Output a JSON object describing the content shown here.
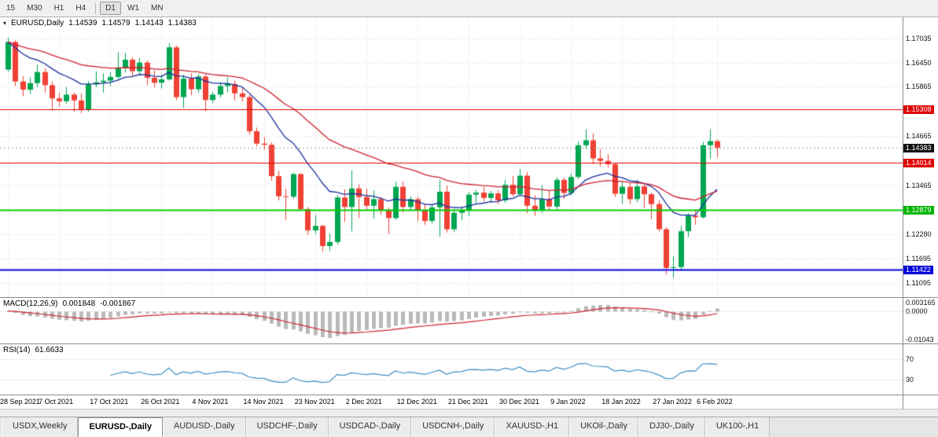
{
  "toolbar": {
    "active": "D1",
    "groups": [
      [
        "15",
        "M30",
        "H1",
        "H4"
      ],
      [
        "D1",
        "W1",
        "MN"
      ]
    ]
  },
  "chart": {
    "symbol_period": "EURUSD,Daily",
    "ohlc": {
      "open": "1.14539",
      "high": "1.14579",
      "low": "1.14143",
      "close": "1.14383"
    }
  },
  "chart_data": {
    "type": "candlestick",
    "title": "EURUSD,Daily",
    "ylim": [
      1.1075,
      1.1755
    ],
    "up_color": "#00a651",
    "down_color": "#ef4135",
    "grid_color": "#dcdcdc",
    "current_price": 1.14383,
    "price_ticks": [
      {
        "label": "1.17035",
        "v": 1.17035
      },
      {
        "label": "1.16450",
        "v": 1.1645
      },
      {
        "label": "1.15865",
        "v": 1.15865
      },
      {
        "label": "1.14665",
        "v": 1.14665
      },
      {
        "label": "1.13465",
        "v": 1.13465
      },
      {
        "label": "1.12280",
        "v": 1.1228
      },
      {
        "label": "1.11695",
        "v": 1.11695
      },
      {
        "label": "1.11095",
        "v": 1.11095
      }
    ],
    "price_badges": [
      {
        "label": "1.15308",
        "v": 1.15308,
        "bg": "#e00000"
      },
      {
        "label": "1.14383",
        "v": 1.14383,
        "bg": "#111111"
      },
      {
        "label": "1.14014",
        "v": 1.14014,
        "bg": "#e00000"
      },
      {
        "label": "1.12879",
        "v": 1.12879,
        "bg": "#00b400"
      },
      {
        "label": "1.11422",
        "v": 1.11422,
        "bg": "#0000dd"
      }
    ],
    "hlines": [
      {
        "value": 1.15308,
        "color": "#e00000",
        "width": 1
      },
      {
        "value": 1.14014,
        "color": "#e00000",
        "width": 1
      },
      {
        "value": 1.12879,
        "color": "#00cc00",
        "width": 2
      },
      {
        "value": 1.11422,
        "color": "#0000e0",
        "width": 2
      }
    ],
    "moving_averages": [
      {
        "period": 13,
        "color": "#1a2f9e"
      },
      {
        "period": 34,
        "color": "#cc2030"
      }
    ],
    "candles": [
      [
        1.1628,
        1.1705,
        1.1622,
        1.1695
      ],
      [
        1.1695,
        1.1699,
        1.1588,
        1.1599
      ],
      [
        1.1599,
        1.1612,
        1.1563,
        1.1579
      ],
      [
        1.1579,
        1.1608,
        1.1569,
        1.1595
      ],
      [
        1.1595,
        1.164,
        1.1585,
        1.1622
      ],
      [
        1.1622,
        1.163,
        1.1572,
        1.159
      ],
      [
        1.159,
        1.1599,
        1.1529,
        1.1558
      ],
      [
        1.1558,
        1.1571,
        1.1538,
        1.1551
      ],
      [
        1.1551,
        1.1586,
        1.1545,
        1.1567
      ],
      [
        1.1567,
        1.1572,
        1.1524,
        1.1553
      ],
      [
        1.1553,
        1.157,
        1.1522,
        1.153
      ],
      [
        1.153,
        1.16,
        1.1525,
        1.1592
      ],
      [
        1.1592,
        1.1624,
        1.1585,
        1.1597
      ],
      [
        1.1597,
        1.1619,
        1.1572,
        1.1601
      ],
      [
        1.1601,
        1.1622,
        1.1588,
        1.161
      ],
      [
        1.161,
        1.167,
        1.1605,
        1.1633
      ],
      [
        1.1633,
        1.1669,
        1.1621,
        1.1652
      ],
      [
        1.1652,
        1.1658,
        1.161,
        1.1624
      ],
      [
        1.1624,
        1.1656,
        1.1617,
        1.1645
      ],
      [
        1.1645,
        1.165,
        1.159,
        1.1608
      ],
      [
        1.1608,
        1.1626,
        1.1585,
        1.1596
      ],
      [
        1.1596,
        1.1615,
        1.1582,
        1.1604
      ],
      [
        1.1604,
        1.1692,
        1.1601,
        1.1682
      ],
      [
        1.1682,
        1.1686,
        1.1553,
        1.1561
      ],
      [
        1.1561,
        1.1616,
        1.1535,
        1.1606
      ],
      [
        1.1606,
        1.1619,
        1.1565,
        1.158
      ],
      [
        1.158,
        1.1617,
        1.1572,
        1.1611
      ],
      [
        1.1611,
        1.1616,
        1.1527,
        1.1554
      ],
      [
        1.1554,
        1.1573,
        1.1546,
        1.1567
      ],
      [
        1.1567,
        1.1598,
        1.156,
        1.1588
      ],
      [
        1.1588,
        1.1609,
        1.1572,
        1.1593
      ],
      [
        1.1593,
        1.1601,
        1.1552,
        1.157
      ],
      [
        1.157,
        1.1584,
        1.155,
        1.1561
      ],
      [
        1.1561,
        1.1566,
        1.147,
        1.1478
      ],
      [
        1.1478,
        1.1487,
        1.1441,
        1.1448
      ],
      [
        1.1448,
        1.1464,
        1.1433,
        1.1445
      ],
      [
        1.1445,
        1.1451,
        1.1358,
        1.1369
      ],
      [
        1.1369,
        1.1382,
        1.131,
        1.132
      ],
      [
        1.132,
        1.1338,
        1.1263,
        1.1319
      ],
      [
        1.1319,
        1.1377,
        1.1314,
        1.1374
      ],
      [
        1.1374,
        1.1376,
        1.1286,
        1.1289
      ],
      [
        1.1289,
        1.1294,
        1.1226,
        1.1237
      ],
      [
        1.1237,
        1.1275,
        1.1229,
        1.1248
      ],
      [
        1.1248,
        1.1251,
        1.1186,
        1.1199
      ],
      [
        1.1199,
        1.1229,
        1.1187,
        1.1209
      ],
      [
        1.1209,
        1.1323,
        1.1203,
        1.1317
      ],
      [
        1.1317,
        1.1337,
        1.1258,
        1.1294
      ],
      [
        1.1294,
        1.1383,
        1.1235,
        1.1339
      ],
      [
        1.1339,
        1.1349,
        1.1267,
        1.1318
      ],
      [
        1.1318,
        1.1339,
        1.1287,
        1.1297
      ],
      [
        1.1297,
        1.1334,
        1.1266,
        1.1313
      ],
      [
        1.1313,
        1.1319,
        1.1275,
        1.1285
      ],
      [
        1.1285,
        1.1292,
        1.1228,
        1.1267
      ],
      [
        1.1267,
        1.1355,
        1.1263,
        1.1343
      ],
      [
        1.1343,
        1.1356,
        1.128,
        1.1294
      ],
      [
        1.1294,
        1.132,
        1.1285,
        1.1313
      ],
      [
        1.1313,
        1.1319,
        1.126,
        1.1286
      ],
      [
        1.1286,
        1.1303,
        1.125,
        1.126
      ],
      [
        1.126,
        1.1298,
        1.1254,
        1.1293
      ],
      [
        1.1293,
        1.136,
        1.1222,
        1.1331
      ],
      [
        1.1331,
        1.1346,
        1.1232,
        1.124
      ],
      [
        1.124,
        1.1288,
        1.1234,
        1.128
      ],
      [
        1.128,
        1.1296,
        1.1262,
        1.1287
      ],
      [
        1.1287,
        1.133,
        1.1272,
        1.1324
      ],
      [
        1.1324,
        1.1336,
        1.1303,
        1.1329
      ],
      [
        1.1329,
        1.1343,
        1.1308,
        1.1316
      ],
      [
        1.1316,
        1.1333,
        1.1305,
        1.1327
      ],
      [
        1.1327,
        1.1335,
        1.1301,
        1.131
      ],
      [
        1.131,
        1.136,
        1.1304,
        1.1348
      ],
      [
        1.1348,
        1.1369,
        1.132,
        1.1325
      ],
      [
        1.1325,
        1.1386,
        1.1321,
        1.137
      ],
      [
        1.137,
        1.1379,
        1.1279,
        1.1297
      ],
      [
        1.1297,
        1.1323,
        1.1272,
        1.1285
      ],
      [
        1.1285,
        1.1347,
        1.128,
        1.1313
      ],
      [
        1.1313,
        1.1333,
        1.1285,
        1.1295
      ],
      [
        1.1295,
        1.1366,
        1.1289,
        1.136
      ],
      [
        1.136,
        1.1365,
        1.1313,
        1.1328
      ],
      [
        1.1328,
        1.1375,
        1.1322,
        1.1367
      ],
      [
        1.1367,
        1.1453,
        1.1362,
        1.1444
      ],
      [
        1.1444,
        1.1483,
        1.1435,
        1.1456
      ],
      [
        1.1456,
        1.1473,
        1.1398,
        1.1412
      ],
      [
        1.1412,
        1.1435,
        1.1393,
        1.1406
      ],
      [
        1.1406,
        1.1422,
        1.139,
        1.1398
      ],
      [
        1.1398,
        1.1402,
        1.1318,
        1.1326
      ],
      [
        1.1326,
        1.1356,
        1.1302,
        1.1343
      ],
      [
        1.1343,
        1.1354,
        1.1301,
        1.1313
      ],
      [
        1.1313,
        1.136,
        1.1306,
        1.1344
      ],
      [
        1.1344,
        1.1351,
        1.1291,
        1.1325
      ],
      [
        1.1325,
        1.1328,
        1.1264,
        1.1301
      ],
      [
        1.1301,
        1.131,
        1.1235,
        1.124
      ],
      [
        1.124,
        1.1245,
        1.1131,
        1.1146
      ],
      [
        1.1146,
        1.1174,
        1.1122,
        1.1148
      ],
      [
        1.1148,
        1.1248,
        1.1141,
        1.1235
      ],
      [
        1.1235,
        1.1279,
        1.1221,
        1.1273
      ],
      [
        1.1273,
        1.1288,
        1.1251,
        1.1269
      ],
      [
        1.1269,
        1.1452,
        1.1266,
        1.1444
      ],
      [
        1.1444,
        1.1483,
        1.1411,
        1.1454
      ],
      [
        1.14539,
        1.14579,
        1.14143,
        1.14383
      ]
    ],
    "xlabels": [
      {
        "i": 0,
        "t": "28 Sep 2021"
      },
      {
        "i": 7,
        "t": "7 Oct 2021"
      },
      {
        "i": 14,
        "t": "17 Oct 2021"
      },
      {
        "i": 21,
        "t": "26 Oct 2021"
      },
      {
        "i": 28,
        "t": "4 Nov 2021"
      },
      {
        "i": 35,
        "t": "14 Nov 2021"
      },
      {
        "i": 42,
        "t": "23 Nov 2021"
      },
      {
        "i": 49,
        "t": "2 Dec 2021"
      },
      {
        "i": 56,
        "t": "12 Dec 2021"
      },
      {
        "i": 63,
        "t": "21 Dec 2021"
      },
      {
        "i": 70,
        "t": "30 Dec 2021"
      },
      {
        "i": 77,
        "t": "9 Jan 2022"
      },
      {
        "i": 84,
        "t": "18 Jan 2022"
      },
      {
        "i": 91,
        "t": "27 Jan 2022"
      },
      {
        "i": 97,
        "t": "6 Feb 2022"
      }
    ]
  },
  "indicators": {
    "macd": {
      "label": "MACD(12,26,9)",
      "value_main": "0.001848",
      "value_signal": "-0.001867",
      "ylim": [
        -0.012,
        0.0048
      ],
      "hist_color": "#b9b9b9",
      "signal_color": "#cc2030",
      "ticks": [
        {
          "label": "0.003165",
          "v": 0.003165
        },
        {
          "label": "0.0000",
          "v": 0
        },
        {
          "label": "-0.01043",
          "v": -0.01043
        }
      ]
    },
    "rsi": {
      "label": "RSI(14)",
      "value": "61.6633",
      "ylim": [
        0,
        100
      ],
      "line_color": "#3b8fc4",
      "levels": [
        {
          "label": "70",
          "v": 70
        },
        {
          "label": "30",
          "v": 30
        }
      ]
    }
  },
  "tabs": {
    "active_index": 1,
    "items": [
      "USDX,Weekly",
      "EURUSD-,Daily",
      "AUDUSD-,Daily",
      "USDCHF-,Daily",
      "USDCAD-,Daily",
      "USDCNH-,Daily",
      "XAUUSD-,H1",
      "UKOil-,Daily",
      "DJ30-,Daily",
      "UK100-,H1"
    ]
  }
}
